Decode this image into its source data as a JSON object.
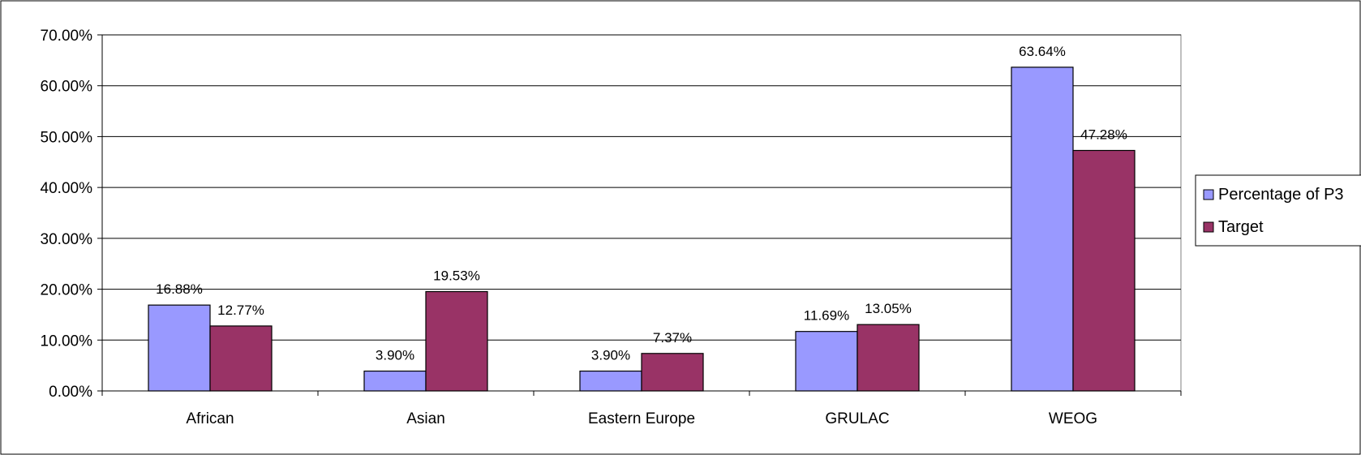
{
  "chart_data": {
    "type": "bar",
    "title": "",
    "xlabel": "",
    "ylabel": "",
    "categories": [
      "African",
      "Asian",
      "Eastern Europe",
      "GRULAC",
      "WEOG"
    ],
    "series": [
      {
        "name": "Percentage of P3",
        "color": "#9999ff",
        "values": [
          16.88,
          3.9,
          3.9,
          11.69,
          63.64
        ],
        "labels": [
          "16.88%",
          "3.90%",
          "3.90%",
          "11.69%",
          "63.64%"
        ]
      },
      {
        "name": "Target",
        "color": "#993366",
        "values": [
          12.77,
          19.53,
          7.37,
          13.05,
          47.28
        ],
        "labels": [
          "12.77%",
          "19.53%",
          "7.37%",
          "13.05%",
          "47.28%"
        ]
      }
    ],
    "ylim": [
      0,
      70
    ],
    "yticks": [
      0,
      10,
      20,
      30,
      40,
      50,
      60,
      70
    ],
    "ytick_labels": [
      "0.00%",
      "10.00%",
      "20.00%",
      "30.00%",
      "40.00%",
      "50.00%",
      "60.00%",
      "70.00%"
    ],
    "grid": true,
    "legend_position": "right"
  }
}
